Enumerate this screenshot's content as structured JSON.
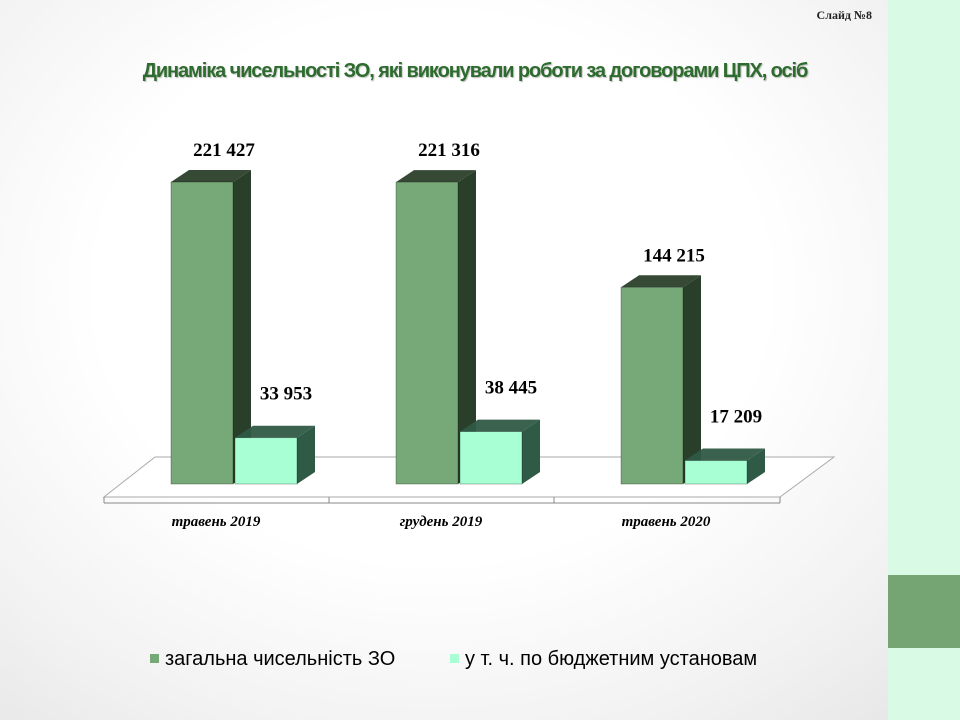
{
  "slide": {
    "number_label": "Слайд №8",
    "title": "Динаміка чисельності ЗО, які виконували роботи за договорами ЦПХ, осіб"
  },
  "colors": {
    "series1_front": "#76a977",
    "series1_side": "#2a3f2a",
    "series2_front": "#a7ffd3",
    "series2_side": "#2f5a46",
    "accent_strip": "#d9fbe6",
    "accent_block": "#74a572",
    "title": "#2e6b2e"
  },
  "chart_data": {
    "type": "bar",
    "categories": [
      "травень 2019",
      "грудень 2019",
      "травень 2020"
    ],
    "series": [
      {
        "name": "загальна чисельність ЗО",
        "values": [
          221427,
          221316,
          144215
        ],
        "labels": [
          "221 427",
          "221 316",
          "144 215"
        ]
      },
      {
        "name": "у т. ч. по  бюджетним установам",
        "values": [
          33953,
          38445,
          17209
        ],
        "labels": [
          "33 953",
          "38 445",
          "17 209"
        ]
      }
    ],
    "ylim": [
      0,
      230000
    ],
    "grid": false,
    "legend_position": "bottom",
    "style": "3d-clustered-column"
  },
  "legend": {
    "items": [
      "загальна чисельність ЗО",
      "у т. ч. по  бюджетним установам"
    ]
  }
}
